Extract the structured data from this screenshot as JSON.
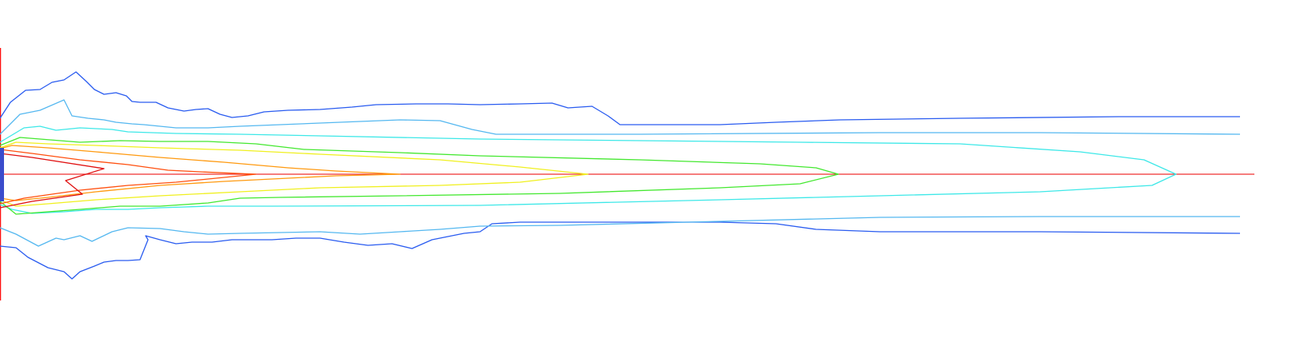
{
  "visualization": {
    "kind": "contour-lines",
    "axis_line_color": "#f03030",
    "boundary_line_color": "#ff1010",
    "inlet_color": "#3b4ccc",
    "contour_colors": [
      "#2a5cf0",
      "#55b8f0",
      "#3ee8e8",
      "#44e830",
      "#f0f020",
      "#ff9a10",
      "#ff5010",
      "#e01010"
    ]
  }
}
